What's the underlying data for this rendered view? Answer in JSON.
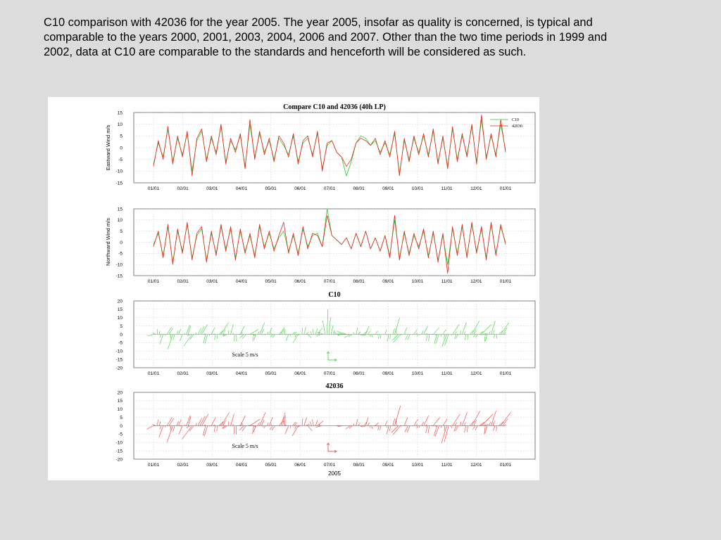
{
  "caption": "C10 comparison with 42036 for the year 2005. The year 2005, insofar as quality is concerned, is typical and comparable to the years 2000, 2001, 2003, 2004, 2006 and 2007. Other than the two time periods in 1999 and 2002, data at C10 are comparable to the standards and henceforth will be considered as such.",
  "colors": {
    "c10": "#22cc22",
    "b42036": "#ee2222",
    "grid": "#b8b8b8",
    "axis": "#444444"
  },
  "chart_data": [
    {
      "type": "line",
      "title": "Compare C10 and 42036 (40h LP)",
      "ylabel": "Eastward Wind m/s",
      "xlabel": "",
      "x_ticks": [
        "01/01",
        "02/01",
        "03/01",
        "04/01",
        "05/01",
        "06/01",
        "07/01",
        "08/01",
        "09/01",
        "10/01",
        "11/01",
        "12/01",
        "01/01"
      ],
      "ylim": [
        -15,
        15
      ],
      "y_ticks": [
        15,
        10,
        5,
        0,
        -5,
        -10,
        -15
      ],
      "grid": true,
      "legend": "top-right",
      "series": [
        {
          "name": "C10",
          "color": "#22cc22",
          "x_days": [
            0,
            5,
            10,
            15,
            20,
            25,
            30,
            35,
            40,
            45,
            50,
            55,
            60,
            65,
            70,
            75,
            80,
            85,
            90,
            95,
            100,
            105,
            110,
            115,
            120,
            125,
            130,
            135,
            140,
            145,
            150,
            155,
            160,
            165,
            170,
            175,
            180,
            185,
            190,
            195,
            200,
            205,
            210,
            215,
            220,
            225,
            230,
            235,
            240,
            245,
            250,
            255,
            260,
            265,
            270,
            275,
            280,
            285,
            290,
            295,
            300,
            305,
            310,
            315,
            320,
            325,
            330,
            335,
            340,
            345,
            350,
            355,
            360,
            365
          ],
          "values": [
            -7,
            2,
            -4,
            8,
            -6,
            4,
            -3,
            6,
            -10,
            3,
            7,
            -5,
            4,
            -2,
            9,
            -6,
            3,
            -1,
            5,
            -8,
            10,
            -4,
            6,
            -2,
            3,
            -5,
            4,
            1,
            -3,
            5,
            -6,
            2,
            4,
            -3,
            6,
            -9,
            1,
            3,
            -2,
            -4,
            -12,
            -6,
            2,
            5,
            4,
            1,
            3,
            -2,
            2,
            -3,
            6,
            -11,
            3,
            -5,
            4,
            -2,
            5,
            -3,
            7,
            -6,
            4,
            -8,
            8,
            -5,
            5,
            -3,
            9,
            -6,
            12,
            -4,
            5,
            -3,
            10,
            -1
          ]
        },
        {
          "name": "42036",
          "color": "#ee2222",
          "x_days": [
            0,
            5,
            10,
            15,
            20,
            25,
            30,
            35,
            40,
            45,
            50,
            55,
            60,
            65,
            70,
            75,
            80,
            85,
            90,
            95,
            100,
            105,
            110,
            115,
            120,
            125,
            130,
            135,
            140,
            145,
            150,
            155,
            160,
            165,
            170,
            175,
            180,
            185,
            190,
            195,
            200,
            205,
            210,
            215,
            220,
            225,
            230,
            235,
            240,
            245,
            250,
            255,
            260,
            265,
            270,
            275,
            280,
            285,
            290,
            295,
            300,
            305,
            310,
            315,
            320,
            325,
            330,
            335,
            340,
            345,
            350,
            355,
            360,
            365
          ],
          "values": [
            -8,
            3,
            -5,
            9,
            -7,
            5,
            -4,
            7,
            -12,
            4,
            8,
            -6,
            5,
            -3,
            10,
            -7,
            4,
            -2,
            6,
            -9,
            12,
            -5,
            7,
            -3,
            4,
            -6,
            5,
            2,
            -4,
            6,
            -7,
            3,
            5,
            -4,
            7,
            -10,
            2,
            3,
            -2,
            -4,
            -8,
            -5,
            2,
            4,
            3,
            1,
            4,
            -3,
            3,
            -4,
            7,
            -12,
            4,
            -6,
            5,
            -3,
            6,
            -4,
            8,
            -7,
            5,
            -9,
            9,
            -6,
            6,
            -4,
            10,
            -7,
            14,
            -5,
            6,
            -4,
            12,
            -2
          ]
        }
      ]
    },
    {
      "type": "line",
      "title": "",
      "ylabel": "Northward Wind m/s",
      "xlabel": "",
      "x_ticks": [
        "01/01",
        "02/01",
        "03/01",
        "04/01",
        "05/01",
        "06/01",
        "07/01",
        "08/01",
        "09/01",
        "10/01",
        "11/01",
        "12/01",
        "01/01"
      ],
      "ylim": [
        -15,
        15
      ],
      "y_ticks": [
        15,
        10,
        5,
        0,
        -5,
        -10,
        -15
      ],
      "grid": true,
      "series": [
        {
          "name": "C10",
          "color": "#22cc22",
          "x_days": [
            0,
            5,
            10,
            15,
            20,
            25,
            30,
            35,
            40,
            45,
            50,
            55,
            60,
            65,
            70,
            75,
            80,
            85,
            90,
            95,
            100,
            105,
            110,
            115,
            120,
            125,
            130,
            135,
            140,
            145,
            150,
            155,
            160,
            165,
            170,
            175,
            180,
            185,
            190,
            195,
            200,
            205,
            210,
            215,
            220,
            225,
            230,
            235,
            240,
            245,
            250,
            255,
            260,
            265,
            270,
            275,
            280,
            285,
            290,
            295,
            300,
            305,
            310,
            315,
            320,
            325,
            330,
            335,
            340,
            345,
            350,
            355,
            360,
            365
          ],
          "values": [
            -1,
            4,
            -6,
            7,
            -9,
            5,
            -4,
            8,
            -7,
            3,
            6,
            -8,
            4,
            -5,
            7,
            -3,
            6,
            -7,
            5,
            -4,
            3,
            -6,
            7,
            -2,
            4,
            -3,
            2,
            5,
            -4,
            3,
            -5,
            6,
            -2,
            3,
            4,
            -2,
            15,
            3,
            1,
            -1,
            2,
            -3,
            4,
            -2,
            5,
            -3,
            2,
            -4,
            3,
            -6,
            10,
            -7,
            4,
            -5,
            3,
            -2,
            5,
            -6,
            4,
            -8,
            3,
            -10,
            6,
            -5,
            7,
            -6,
            8,
            -4,
            6,
            -7,
            8,
            -5,
            7,
            0
          ]
        },
        {
          "name": "42036",
          "color": "#ee2222",
          "x_days": [
            0,
            5,
            10,
            15,
            20,
            25,
            30,
            35,
            40,
            45,
            50,
            55,
            60,
            65,
            70,
            75,
            80,
            85,
            90,
            95,
            100,
            105,
            110,
            115,
            120,
            125,
            130,
            135,
            140,
            145,
            150,
            155,
            160,
            165,
            170,
            175,
            180,
            185,
            190,
            195,
            200,
            205,
            210,
            215,
            220,
            225,
            230,
            235,
            240,
            245,
            250,
            255,
            260,
            265,
            270,
            275,
            280,
            285,
            290,
            295,
            300,
            305,
            310,
            315,
            320,
            325,
            330,
            335,
            340,
            345,
            350,
            355,
            360,
            365
          ],
          "values": [
            -2,
            5,
            -7,
            8,
            -10,
            6,
            -5,
            9,
            -8,
            4,
            7,
            -9,
            5,
            -6,
            8,
            -4,
            7,
            -8,
            6,
            -5,
            4,
            -7,
            8,
            -3,
            5,
            -4,
            3,
            9,
            -5,
            4,
            -6,
            7,
            -3,
            4,
            3,
            -2,
            12,
            3,
            1,
            -1,
            2,
            -3,
            4,
            -2,
            5,
            -3,
            2,
            -4,
            3,
            -7,
            12,
            -8,
            5,
            -6,
            4,
            -3,
            6,
            -7,
            5,
            -9,
            4,
            -14,
            7,
            -6,
            8,
            -7,
            9,
            -5,
            7,
            -8,
            9,
            -6,
            8,
            -1
          ]
        }
      ]
    },
    {
      "type": "quiver",
      "title": "C10",
      "ylabel": "",
      "xlabel": "",
      "color": "#22cc22",
      "scale_label": "Scale 5 m/s",
      "x_ticks": [
        "01/01",
        "02/01",
        "03/01",
        "04/01",
        "05/01",
        "06/01",
        "07/01",
        "08/01",
        "09/01",
        "10/01",
        "11/01",
        "12/01",
        "01/01"
      ],
      "ylim": [
        -20,
        20
      ],
      "y_ticks": [
        20,
        15,
        10,
        5,
        0,
        -5,
        -10,
        -15,
        -20
      ],
      "grid": true,
      "series_ref": [
        0,
        0
      ]
    },
    {
      "type": "quiver",
      "title": "42036",
      "ylabel": "",
      "xlabel": "2005",
      "color": "#ee2222",
      "scale_label": "Scale 5 m/s",
      "x_ticks": [
        "01/01",
        "02/01",
        "03/01",
        "04/01",
        "05/01",
        "06/01",
        "07/01",
        "08/01",
        "09/01",
        "10/01",
        "11/01",
        "12/01",
        "01/01"
      ],
      "ylim": [
        -20,
        20
      ],
      "y_ticks": [
        20,
        15,
        10,
        5,
        0,
        -5,
        -10,
        -15,
        -20
      ],
      "grid": true,
      "series_ref": [
        1,
        1
      ],
      "gaps_days": [
        [
          175,
          190
        ],
        [
          198,
          203
        ]
      ]
    }
  ]
}
